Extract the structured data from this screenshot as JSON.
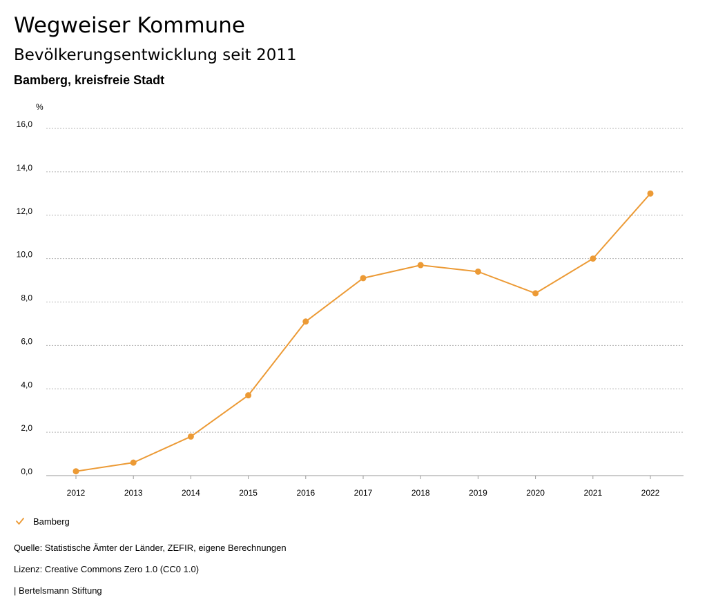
{
  "header": {
    "title": "Wegweiser Kommune",
    "subtitle": "Bevölkerungsentwicklung seit 2011",
    "region": "Bamberg, kreisfreie Stadt"
  },
  "colors": {
    "series": "#ec9a35",
    "grid": "#b4b4b4",
    "axis": "#9a9a9a",
    "text": "#000000"
  },
  "chart_data": {
    "type": "line",
    "title": "Bevölkerungsentwicklung seit 2011",
    "xlabel": "",
    "ylabel": "%",
    "x": [
      "2012",
      "2013",
      "2014",
      "2015",
      "2016",
      "2017",
      "2018",
      "2019",
      "2020",
      "2021",
      "2022"
    ],
    "y_ticks": [
      "0,0",
      "2,0",
      "4,0",
      "6,0",
      "8,0",
      "10,0",
      "12,0",
      "14,0",
      "16,0"
    ],
    "ylim": [
      0,
      16
    ],
    "grid": true,
    "grid_style": "dotted horizontal",
    "markers": true,
    "series": [
      {
        "name": "Bamberg",
        "values": [
          0.2,
          0.6,
          1.8,
          3.7,
          7.1,
          9.1,
          9.7,
          9.4,
          8.4,
          10.0,
          13.0
        ]
      }
    ],
    "legend": "bottom-left"
  },
  "legend": {
    "label": "Bamberg",
    "icon": "check-icon"
  },
  "footer": {
    "source": "Quelle: Statistische Ämter der Länder, ZEFIR, eigene Berechnungen",
    "license": "Lizenz: Creative Commons Zero 1.0 (CC0 1.0)",
    "publisher": "| Bertelsmann Stiftung"
  }
}
